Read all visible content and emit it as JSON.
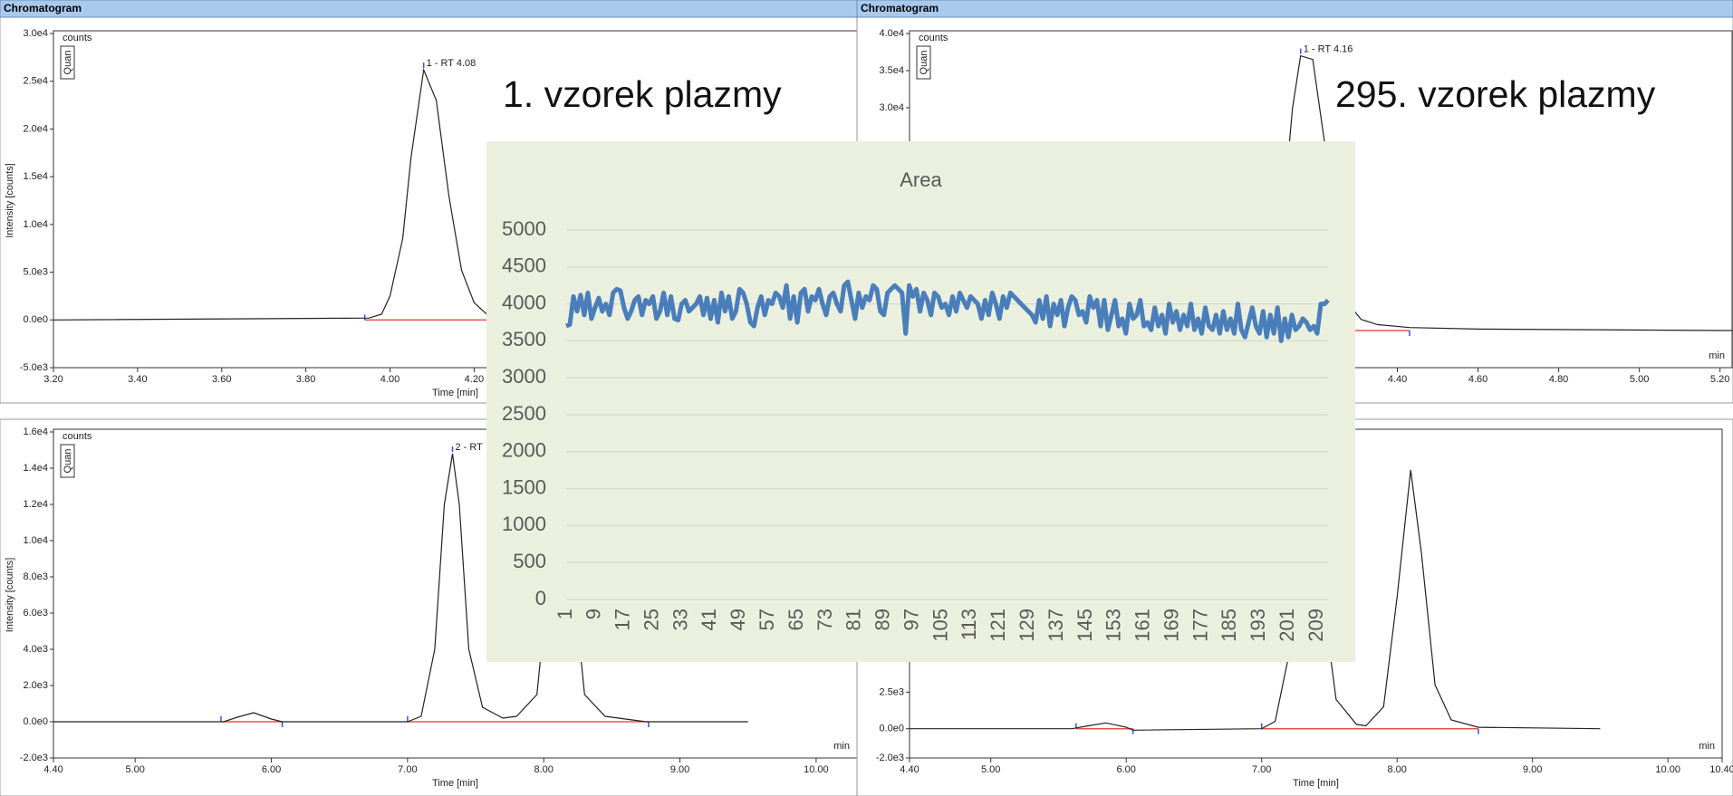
{
  "captions": [
    "1. vzorek plazmy",
    "295. vzorek plazmy"
  ],
  "chart_data": [
    {
      "type": "line",
      "header": "Chromatogram",
      "y_unit": "counts",
      "tag": "Quan",
      "y_label": "Intensity [counts]",
      "x_label": "Time [min]",
      "unit_label": "min",
      "color": "#222222",
      "baseline_color": "#e8332a",
      "marker_color": "#3b4fd8",
      "x": [
        3.2,
        3.95,
        3.98,
        4.0,
        4.03,
        4.05,
        4.08,
        4.11,
        4.14,
        4.17,
        4.2,
        4.23,
        4.26,
        4.3,
        5.11
      ],
      "values": [
        0,
        200,
        600,
        2500,
        8500,
        17000,
        26200,
        23000,
        13000,
        5200,
        1800,
        600,
        200,
        0,
        0
      ],
      "baselines": [
        [
          3.94,
          4.35
        ]
      ],
      "annotations": [
        {
          "text": "1 - RT 4.08",
          "x": 4.08,
          "y": 26200
        }
      ],
      "xlim": [
        3.2,
        5.11
      ],
      "ylim": [
        -5000,
        30000
      ],
      "xticks": [
        {
          "value": 3.2,
          "label": "3.20"
        },
        {
          "value": 3.4,
          "label": "3.40"
        },
        {
          "value": 3.6,
          "label": "3.60"
        },
        {
          "value": 3.8,
          "label": "3.80"
        },
        {
          "value": 4.0,
          "label": "4.00"
        },
        {
          "value": 4.2,
          "label": "4.20"
        }
      ],
      "yticks": [
        {
          "value": -5000,
          "label": "-5.0e3"
        },
        {
          "value": 0,
          "label": "0.0e0"
        },
        {
          "value": 5000,
          "label": "5.0e3"
        },
        {
          "value": 10000,
          "label": "1.0e4"
        },
        {
          "value": 15000,
          "label": "1.5e4"
        },
        {
          "value": 20000,
          "label": "2.0e4"
        },
        {
          "value": 25000,
          "label": "2.5e4"
        },
        {
          "value": 30000,
          "label": "3.0e4"
        }
      ]
    },
    {
      "type": "line",
      "header": "Chromatogram",
      "y_unit": "counts",
      "tag": "Quan",
      "unit_label": "min",
      "color": "#222222",
      "baseline_color": "#e8332a",
      "marker_color": "#3b4fd8",
      "x": [
        3.19,
        4.05,
        4.08,
        4.11,
        4.14,
        4.16,
        4.19,
        4.22,
        4.25,
        4.28,
        4.31,
        4.35,
        4.43,
        4.6,
        5.23
      ],
      "values": [
        0,
        0,
        2000,
        12000,
        30000,
        37000,
        36500,
        25000,
        10000,
        3500,
        1500,
        800,
        400,
        200,
        0
      ],
      "baselines": [
        [
          4.03,
          4.43
        ]
      ],
      "annotations": [
        {
          "text": "1 - RT 4.16",
          "x": 4.16,
          "y": 37000
        }
      ],
      "xlim": [
        3.19,
        5.23
      ],
      "ylim": [
        -5000,
        40000
      ],
      "xticks": [
        {
          "value": 4.4,
          "label": "4.40"
        },
        {
          "value": 4.6,
          "label": "4.60"
        },
        {
          "value": 4.8,
          "label": "4.80"
        },
        {
          "value": 5.0,
          "label": "5.00"
        },
        {
          "value": 5.2,
          "label": "5.20"
        }
      ],
      "yticks": [
        {
          "value": 30000,
          "label": "3.0e4"
        },
        {
          "value": 35000,
          "label": "3.5e4"
        },
        {
          "value": 40000,
          "label": "4.0e4"
        }
      ]
    },
    {
      "type": "line",
      "y_unit": "counts",
      "tag": "Quan",
      "y_label": "Intensity [counts]",
      "x_label": "Time [min]",
      "unit_label": "min",
      "color": "#222222",
      "baseline_color": "#e8332a",
      "marker_color": "#3b4fd8",
      "x": [
        4.4,
        5.65,
        5.75,
        5.87,
        6.0,
        6.08,
        7.0,
        7.1,
        7.2,
        7.27,
        7.33,
        7.38,
        7.45,
        7.55,
        7.7,
        7.8,
        7.95,
        8.05,
        8.12,
        8.2,
        8.3,
        8.45,
        8.75,
        9.5
      ],
      "values": [
        0,
        0,
        250,
        500,
        150,
        0,
        0,
        300,
        4000,
        12000,
        14800,
        12000,
        4000,
        800,
        200,
        300,
        1500,
        9000,
        16500,
        9000,
        1500,
        300,
        0,
        0
      ],
      "baselines": [
        [
          5.63,
          6.08
        ],
        [
          7.0,
          8.77
        ]
      ],
      "annotations": [
        {
          "text": "2 - RT",
          "x": 7.33,
          "y": 14800
        }
      ],
      "xlim": [
        4.4,
        10.3
      ],
      "ylim": [
        -2000,
        16000
      ],
      "xticks": [
        {
          "value": 4.4,
          "label": "4.40"
        },
        {
          "value": 5.0,
          "label": "5.00"
        },
        {
          "value": 6.0,
          "label": "6.00"
        },
        {
          "value": 7.0,
          "label": "7.00"
        },
        {
          "value": 8.0,
          "label": "8.00"
        },
        {
          "value": 9.0,
          "label": "9.00"
        },
        {
          "value": 10.0,
          "label": "10.00"
        }
      ],
      "yticks": [
        {
          "value": -2000,
          "label": "-2.0e3"
        },
        {
          "value": 0,
          "label": "0.0e0"
        },
        {
          "value": 2000,
          "label": "2.0e3"
        },
        {
          "value": 4000,
          "label": "4.0e3"
        },
        {
          "value": 6000,
          "label": "6.0e3"
        },
        {
          "value": 8000,
          "label": "8.0e3"
        },
        {
          "value": 10000,
          "label": "1.0e4"
        },
        {
          "value": 12000,
          "label": "1.2e4"
        },
        {
          "value": 14000,
          "label": "1.4e4"
        },
        {
          "value": 16000,
          "label": "1.6e4"
        }
      ]
    },
    {
      "type": "line",
      "x_label": "Time [min]",
      "unit_label": "min",
      "color": "#222222",
      "baseline_color": "#e8332a",
      "marker_color": "#3b4fd8",
      "x": [
        4.4,
        5.6,
        5.72,
        5.85,
        6.0,
        6.05,
        7.0,
        7.1,
        7.2,
        7.28,
        7.35,
        7.45,
        7.55,
        7.7,
        7.77,
        7.9,
        8.0,
        8.1,
        8.18,
        8.28,
        8.4,
        8.6,
        9.5
      ],
      "values": [
        0,
        0,
        200,
        400,
        100,
        -100,
        0,
        500,
        5000,
        14000,
        16000,
        9000,
        2000,
        300,
        200,
        1500,
        9000,
        17700,
        12000,
        3000,
        600,
        100,
        0
      ],
      "baselines": [
        [
          5.63,
          6.05
        ],
        [
          7.0,
          8.6
        ]
      ],
      "xlim": [
        4.4,
        10.4
      ],
      "ylim": [
        -2000,
        20300
      ],
      "xticks": [
        {
          "value": 4.4,
          "label": "4.40"
        },
        {
          "value": 5.0,
          "label": "5.00"
        },
        {
          "value": 6.0,
          "label": "6.00"
        },
        {
          "value": 7.0,
          "label": "7.00"
        },
        {
          "value": 8.0,
          "label": "8.00"
        },
        {
          "value": 9.0,
          "label": "9.00"
        },
        {
          "value": 10.0,
          "label": "10.00"
        },
        {
          "value": 10.4,
          "label": "10.40"
        }
      ],
      "yticks": [
        {
          "value": -2000,
          "label": "-2.0e3"
        },
        {
          "value": 0,
          "label": "0.0e0"
        },
        {
          "value": 2500,
          "label": "2.5e3"
        }
      ]
    },
    {
      "type": "area_line",
      "title": "Area",
      "color": "#4a7ebb",
      "grid": true,
      "ylim": [
        0,
        5000
      ],
      "yticks": [
        0,
        500,
        1000,
        1500,
        2000,
        2500,
        3000,
        3500,
        4000,
        4500,
        5000
      ],
      "categories": [
        1,
        null,
        null,
        null,
        null,
        null,
        null,
        null,
        9,
        null,
        null,
        null,
        null,
        null,
        null,
        null,
        17,
        null,
        null,
        null,
        null,
        null,
        null,
        null,
        25,
        null,
        null,
        null,
        null,
        null,
        null,
        null,
        33,
        null,
        null,
        null,
        null,
        null,
        null,
        null,
        41,
        null,
        null,
        null,
        null,
        null,
        null,
        null,
        49,
        null,
        null,
        null,
        null,
        null,
        null,
        null,
        57,
        null,
        null,
        null,
        null,
        null,
        null,
        null,
        65,
        null,
        null,
        null,
        null,
        null,
        null,
        null,
        73,
        null,
        null,
        null,
        null,
        null,
        null,
        null,
        81,
        null,
        null,
        null,
        null,
        null,
        null,
        null,
        89,
        null,
        null,
        null,
        null,
        null,
        null,
        null,
        97,
        null,
        null,
        null,
        null,
        null,
        null,
        null,
        105,
        null,
        null,
        null,
        null,
        null,
        null,
        null,
        113,
        null,
        null,
        null,
        null,
        null,
        null,
        null,
        121,
        null,
        null,
        null,
        null,
        null,
        null,
        null,
        129,
        null,
        null,
        null,
        null,
        null,
        null,
        null,
        137,
        null,
        null,
        null,
        null,
        null,
        null,
        null,
        145,
        null,
        null,
        null,
        null,
        null,
        null,
        null,
        153,
        null,
        null,
        null,
        null,
        null,
        null,
        null,
        161,
        null,
        null,
        null,
        null,
        null,
        null,
        null,
        169,
        null,
        null,
        null,
        null,
        null,
        null,
        null,
        177,
        null,
        null,
        null,
        null,
        null,
        null,
        null,
        185,
        null,
        null,
        null,
        null,
        null,
        null,
        null,
        193,
        null,
        null,
        null,
        null,
        null,
        null,
        null,
        201,
        null,
        null,
        null,
        null,
        null,
        null,
        null,
        209,
        null,
        null,
        null
      ],
      "values": [
        3700,
        3720,
        4100,
        3900,
        4120,
        3850,
        4150,
        3800,
        3950,
        4080,
        3900,
        4000,
        3850,
        4150,
        4200,
        4180,
        3950,
        3800,
        3900,
        4050,
        4100,
        3850,
        4050,
        4000,
        4100,
        3800,
        3900,
        4150,
        3850,
        4100,
        3800,
        3780,
        4000,
        4050,
        3900,
        3950,
        4000,
        4100,
        3850,
        4080,
        3800,
        4050,
        3750,
        4150,
        3900,
        4100,
        3800,
        3900,
        4200,
        4150,
        4000,
        3750,
        3700,
        3950,
        4100,
        3850,
        4050,
        4000,
        4150,
        4100,
        3950,
        4250,
        3800,
        4100,
        3750,
        4150,
        4200,
        3900,
        4100,
        4050,
        4200,
        4000,
        3850,
        4100,
        4150,
        4000,
        3900,
        4250,
        4300,
        4050,
        3800,
        4150,
        3950,
        4100,
        4050,
        4250,
        4200,
        3900,
        3850,
        4150,
        4200,
        4250,
        4200,
        4150,
        3600,
        4250,
        4100,
        4200,
        3900,
        4150,
        4050,
        3850,
        4150,
        4100,
        3950,
        4000,
        3850,
        4100,
        3900,
        4150,
        4050,
        3950,
        4100,
        4050,
        4000,
        3800,
        4050,
        3850,
        4150,
        4000,
        3800,
        4100,
        3950,
        4150,
        4100,
        4050,
        4000,
        3950,
        3900,
        3850,
        3750,
        4050,
        3800,
        4100,
        3700,
        4000,
        3850,
        4050,
        3700,
        3950,
        4100,
        4050,
        3850,
        3900,
        3750,
        4100,
        3950,
        4050,
        3700,
        4050,
        3650,
        3850,
        4050,
        3700,
        3800,
        3600,
        4000,
        3800,
        3850,
        4050,
        3700,
        3750,
        3650,
        3950,
        3700,
        3850,
        3600,
        4000,
        3750,
        3900,
        3650,
        3850,
        3700,
        4000,
        3650,
        3800,
        3600,
        3950,
        3700,
        3650,
        3850,
        3600,
        3900,
        3650,
        3800,
        3600,
        4000,
        3650,
        3550,
        3750,
        3950,
        3700,
        3600,
        3900,
        3550,
        3850,
        3600,
        3950,
        3500,
        3800,
        3550,
        3850,
        3650,
        3700,
        3800,
        3750,
        3650,
        3700,
        3600,
        4000,
        4000,
        4050
      ]
    }
  ]
}
